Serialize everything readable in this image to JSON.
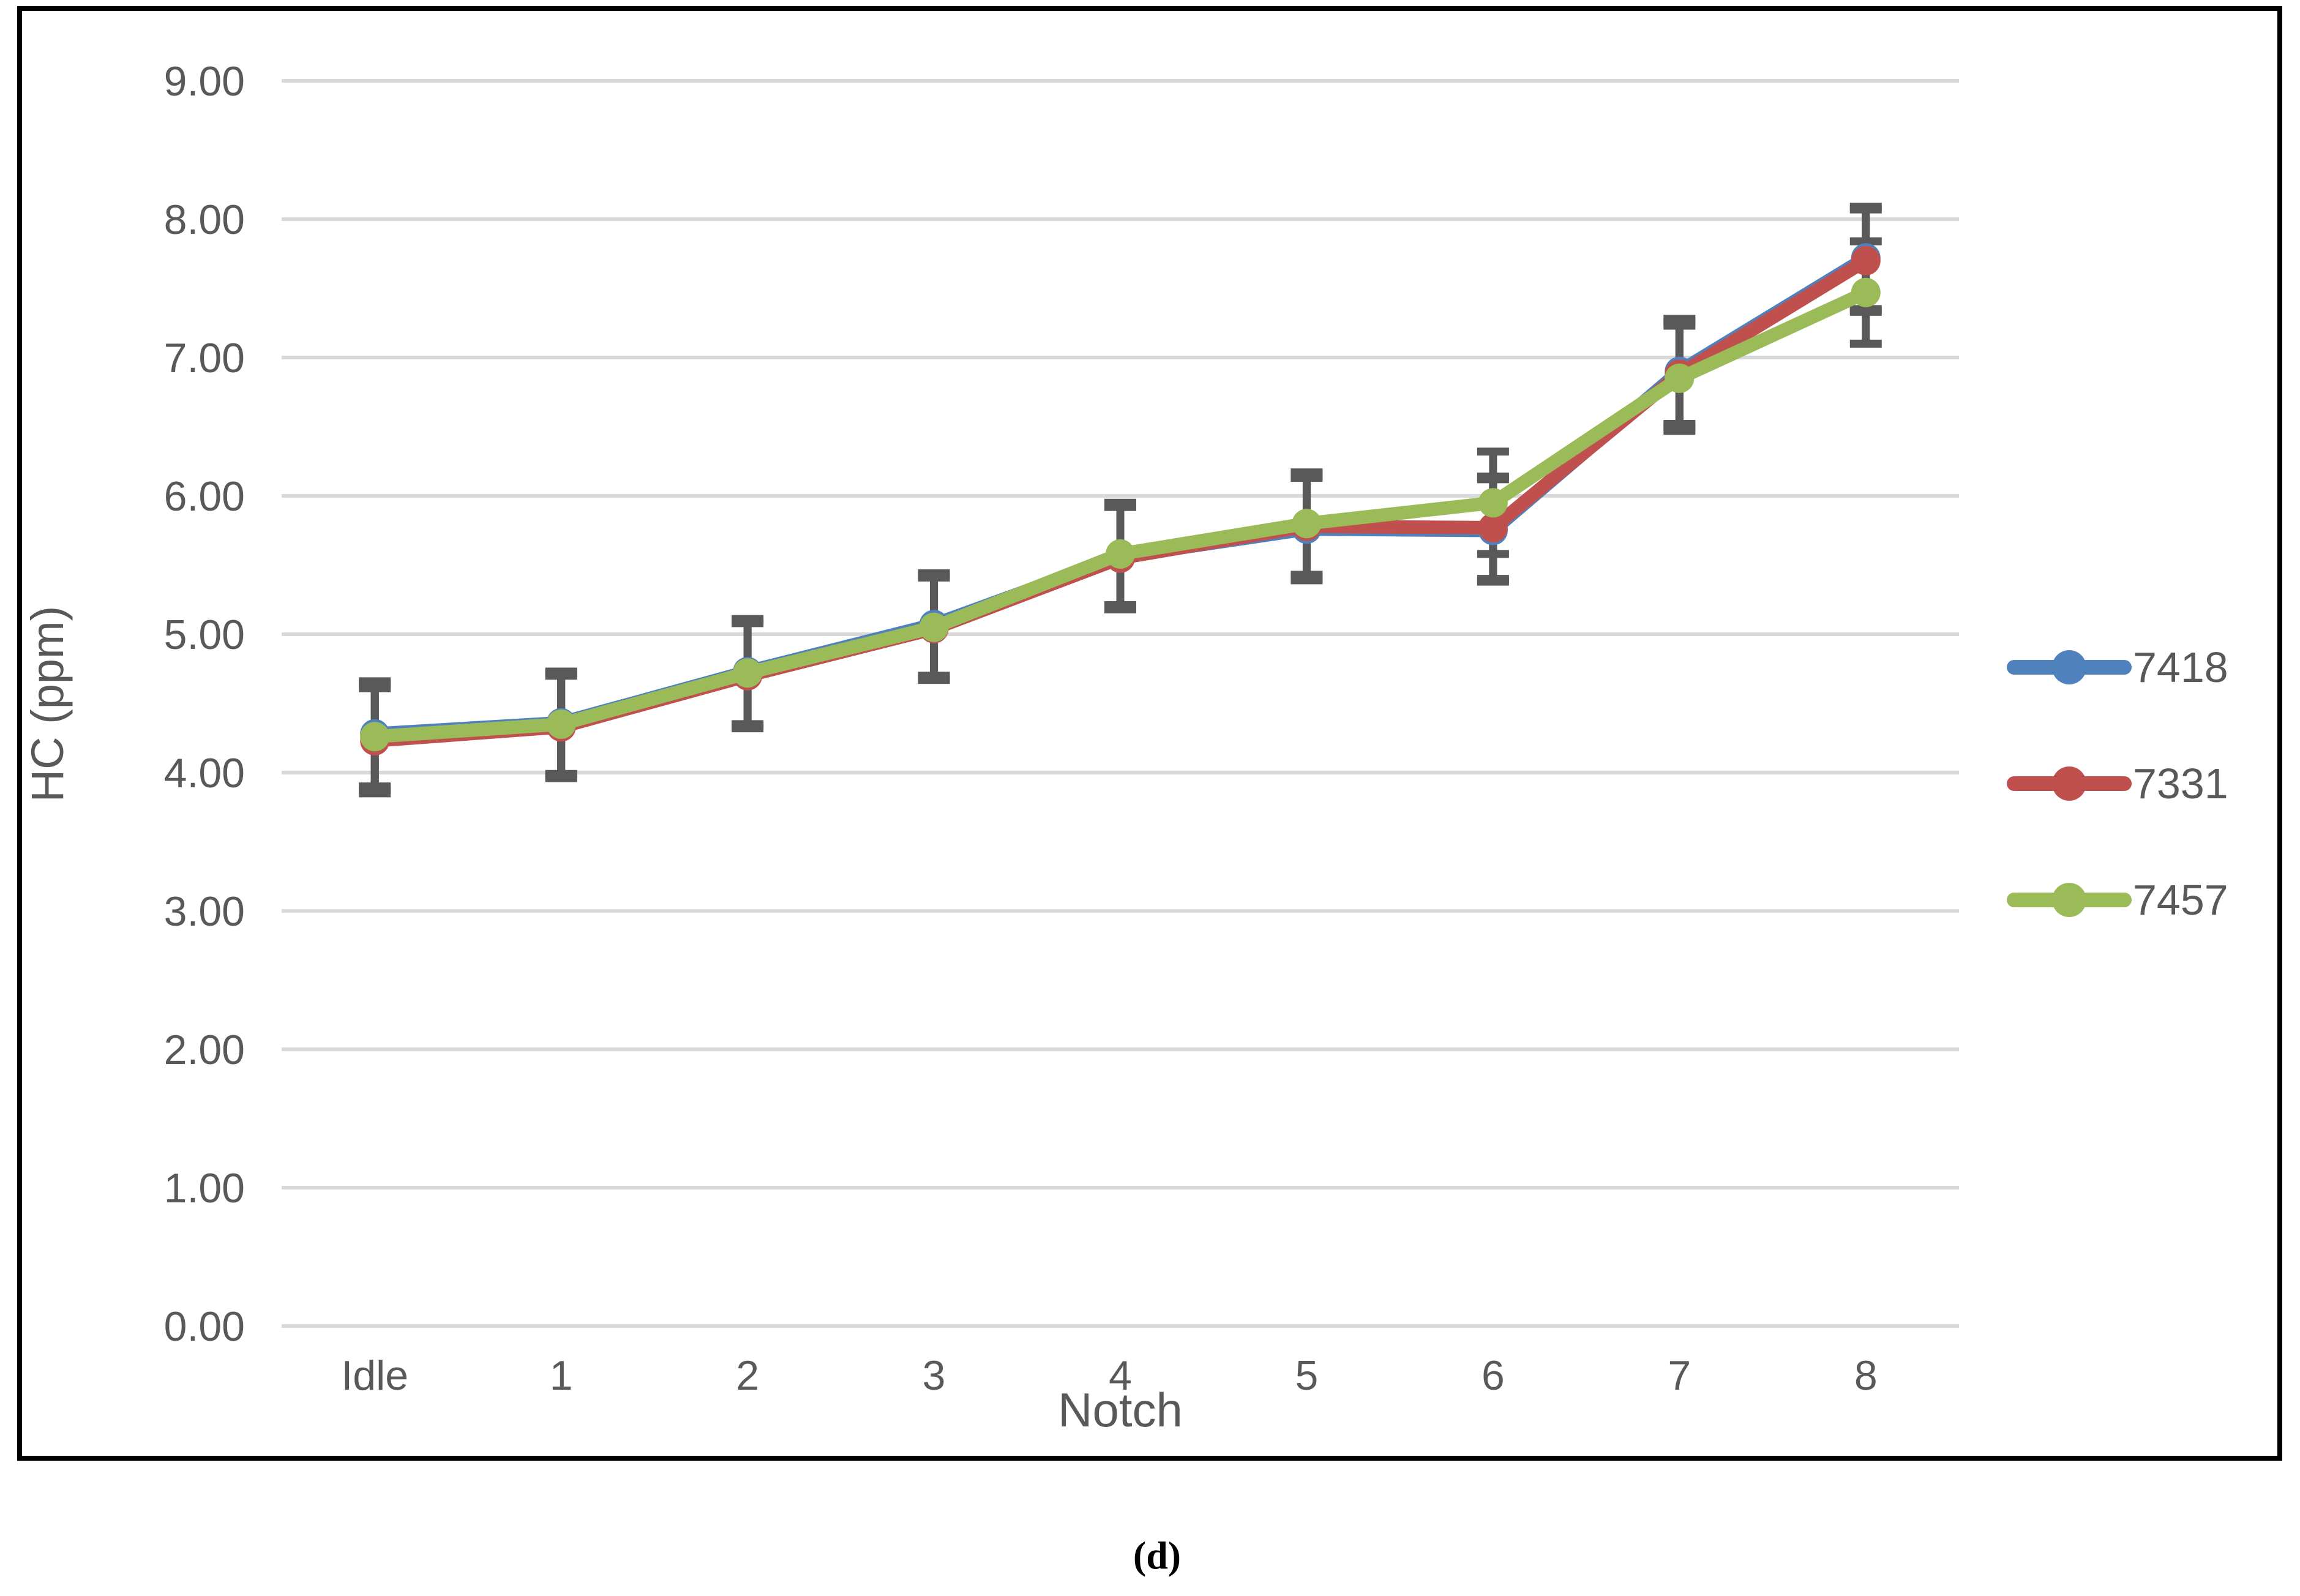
{
  "figure": {
    "caption": "(d)",
    "background_color": "#FFFFFF",
    "border_color": "#000000"
  },
  "chart_data": {
    "type": "line",
    "title": "",
    "xlabel": "Notch",
    "ylabel": "HC (ppm)",
    "categories": [
      "Idle",
      "1",
      "2",
      "3",
      "4",
      "5",
      "6",
      "7",
      "8"
    ],
    "ylim": [
      0,
      9
    ],
    "y_tick_step": 1,
    "y_tick_labels": [
      "0.00",
      "1.00",
      "2.00",
      "3.00",
      "4.00",
      "5.00",
      "6.00",
      "7.00",
      "8.00",
      "9.00"
    ],
    "grid": true,
    "legend_position": "right",
    "axis_text_color": "#595959",
    "gridline_color": "#D9D9D9",
    "error_bar_color": "#595959",
    "series": [
      {
        "name": "7418",
        "color": "#4F81BD",
        "values": [
          4.28,
          4.36,
          4.73,
          5.07,
          5.56,
          5.76,
          5.75,
          6.9,
          7.72
        ],
        "errors": [
          0.38,
          0.37,
          0.38,
          0.37,
          0.37,
          0.37,
          0.37,
          0.38,
          0.37
        ]
      },
      {
        "name": "7331",
        "color": "#C0504D",
        "values": [
          4.23,
          4.33,
          4.7,
          5.04,
          5.55,
          5.78,
          5.77,
          6.88,
          7.7
        ],
        "errors": [
          0.38,
          0.37,
          0.38,
          0.37,
          0.37,
          0.37,
          0.37,
          0.38,
          0.37
        ]
      },
      {
        "name": "7457",
        "color": "#9BBB59",
        "values": [
          4.26,
          4.35,
          4.72,
          5.05,
          5.58,
          5.8,
          5.95,
          6.85,
          7.47
        ],
        "errors": [
          0.38,
          0.37,
          0.38,
          0.37,
          0.37,
          0.37,
          0.37,
          0.38,
          0.37
        ]
      }
    ]
  }
}
